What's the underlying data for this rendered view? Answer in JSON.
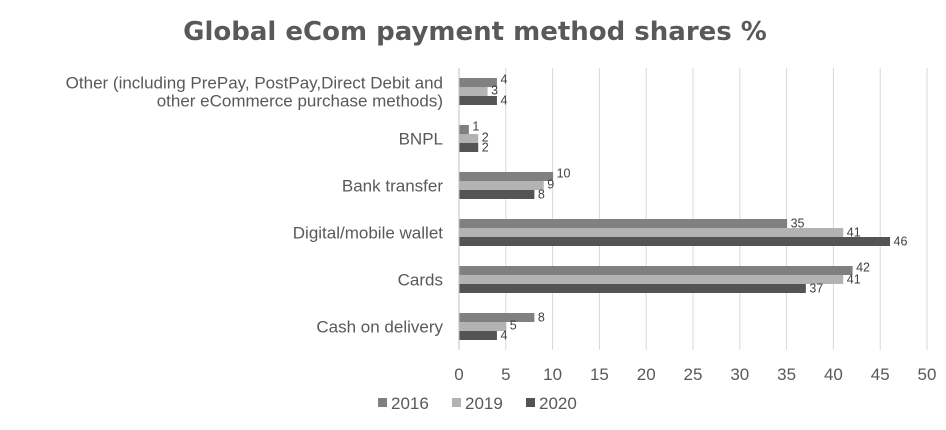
{
  "chart_data": {
    "type": "bar",
    "orientation": "horizontal",
    "title": "Global eCom payment method shares %",
    "xlabel": "",
    "ylabel": "",
    "xlim": [
      0,
      50
    ],
    "x_ticks": [
      0,
      5,
      10,
      15,
      20,
      25,
      30,
      35,
      40,
      45,
      50
    ],
    "grid": true,
    "legend_position": "bottom",
    "categories": [
      "Other (including PrePay, PostPay,Direct Debit and other eCommerce purchase methods)",
      "BNPL",
      "Bank transfer",
      "Digital/mobile wallet",
      "Cards",
      "Cash on delivery"
    ],
    "category_label_lines": [
      [
        "Other (including PrePay, PostPay,Direct Debit and",
        "other eCommerce purchase methods)"
      ],
      [
        "BNPL"
      ],
      [
        "Bank transfer"
      ],
      [
        "Digital/mobile wallet"
      ],
      [
        "Cards"
      ],
      [
        "Cash on delivery"
      ]
    ],
    "series": [
      {
        "name": "2016",
        "color": "#808080",
        "values": [
          4,
          1,
          10,
          35,
          42,
          8
        ]
      },
      {
        "name": "2019",
        "color": "#b3b3b3",
        "values": [
          3,
          2,
          9,
          41,
          41,
          5
        ]
      },
      {
        "name": "2020",
        "color": "#545454",
        "values": [
          4,
          2,
          8,
          46,
          37,
          4
        ]
      }
    ]
  }
}
